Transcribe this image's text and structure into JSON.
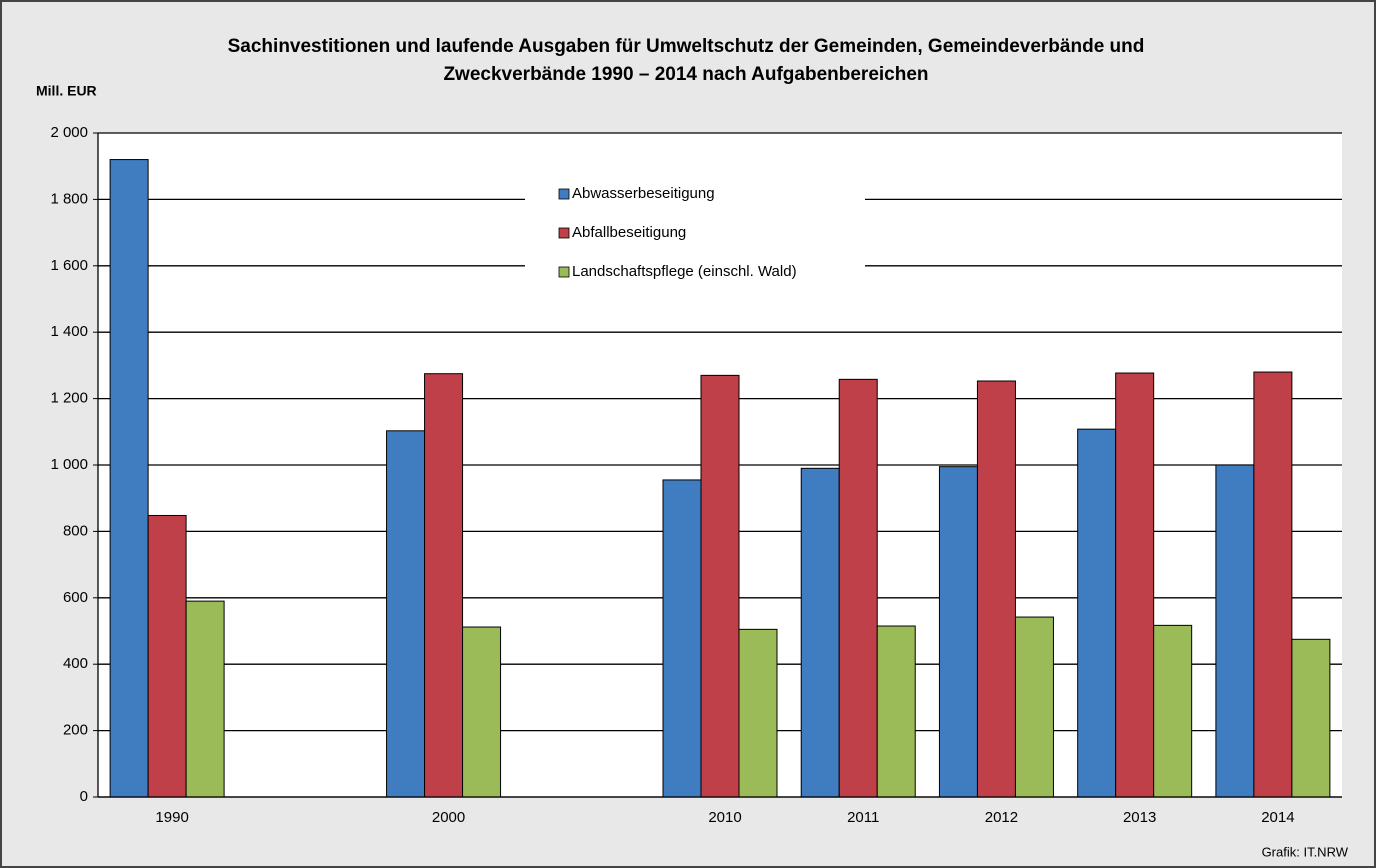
{
  "chart_data": {
    "type": "bar",
    "title": [
      "Sachinvestitionen und laufende Ausgaben für Umweltschutz der Gemeinden, Gemeindeverbände und",
      "Zweckverbände 1990 – 2014 nach Aufgabenbereichen"
    ],
    "y_label": "Mill. EUR",
    "source": "Grafik: IT.NRW",
    "categories": [
      "1990",
      null,
      "2000",
      null,
      "2010",
      "2011",
      "2012",
      "2013",
      "2014"
    ],
    "series": [
      {
        "name": "Abwasserbeseitigung",
        "color": "#3f7cc0",
        "values": [
          1920,
          null,
          1103,
          null,
          955,
          990,
          995,
          1108,
          1000
        ]
      },
      {
        "name": "Abfallbeseitigung",
        "color": "#c0404a",
        "values": [
          848,
          null,
          1275,
          null,
          1270,
          1258,
          1253,
          1277,
          1280
        ]
      },
      {
        "name": "Landschaftspflege (einschl. Wald)",
        "color": "#9bbb59",
        "values": [
          590,
          null,
          512,
          null,
          505,
          515,
          542,
          517,
          475
        ]
      }
    ],
    "ylim": [
      0,
      2000
    ],
    "yticks": [
      0,
      200,
      400,
      600,
      800,
      {
        "value": 1000,
        "label": "1 000"
      },
      {
        "value": 1200,
        "label": "1 200"
      },
      {
        "value": 1400,
        "label": "1 400"
      },
      {
        "value": 1600,
        "label": "1 600"
      },
      {
        "value": 1800,
        "label": "1 800"
      },
      {
        "value": 2000,
        "label": "2 000"
      }
    ],
    "grid": true,
    "legend": "top"
  }
}
